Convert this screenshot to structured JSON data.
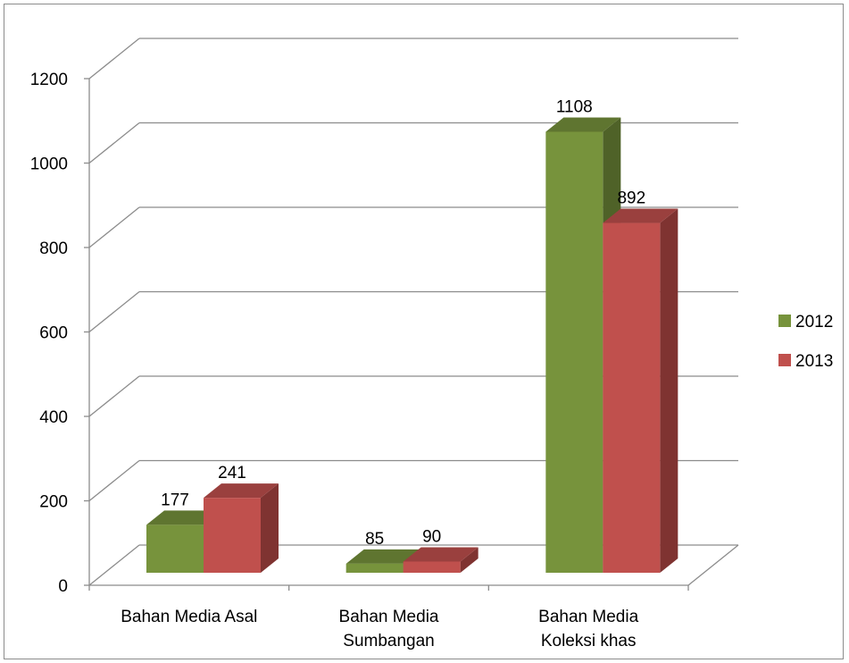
{
  "chart_data": {
    "type": "bar",
    "title": "",
    "xlabel": "",
    "ylabel": "",
    "ylim": [
      0,
      1200
    ],
    "yticks": [
      0,
      200,
      400,
      600,
      800,
      1000,
      1200
    ],
    "grid": true,
    "legend_position": "right",
    "categories": [
      [
        "Bahan Media Asal"
      ],
      [
        "Bahan Media",
        "Sumbangan"
      ],
      [
        "Bahan Media",
        "Koleksi khas"
      ]
    ],
    "series": [
      {
        "name": "2012",
        "values": [
          177,
          85,
          1108
        ],
        "color": "#77933c",
        "top_color": "#5f7530",
        "side_color": "#4f6228"
      },
      {
        "name": "2013",
        "values": [
          241,
          90,
          892
        ],
        "color": "#c0504d",
        "top_color": "#9a403e",
        "side_color": "#7f3331"
      }
    ]
  }
}
